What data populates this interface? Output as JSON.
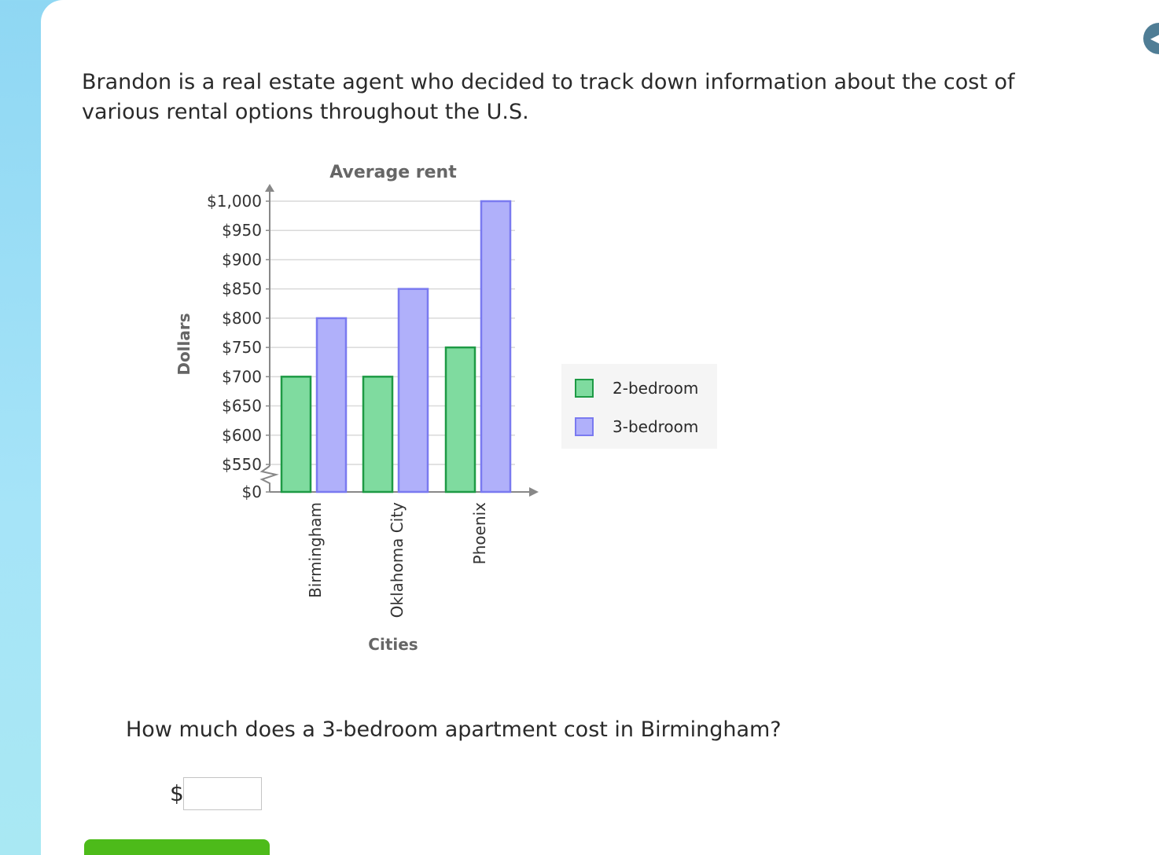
{
  "corner_button": {
    "icon": "chevron-icon"
  },
  "problem": {
    "intro": "Brandon is a real estate agent who decided to track down information about the cost of various rental options throughout the U.S.",
    "question": "How much does a 3-bedroom apartment cost in Birmingham?"
  },
  "answer": {
    "currency_symbol": "$",
    "value": ""
  },
  "submit": {
    "label": ""
  },
  "colors": {
    "two_bedroom_fill": "#7fdb9f",
    "two_bedroom_stroke": "#1e9a45",
    "three_bedroom_fill": "#b0b0fa",
    "three_bedroom_stroke": "#7a7af0",
    "submit_green": "#4dbb1a",
    "background_blue": "#8fd7f3"
  },
  "chart_data": {
    "type": "bar",
    "title": "Average rent",
    "xlabel": "Cities",
    "ylabel": "Dollars",
    "categories": [
      "Birmingham",
      "Oklahoma City",
      "Phoenix"
    ],
    "series": [
      {
        "name": "2-bedroom",
        "values": [
          700,
          700,
          750
        ]
      },
      {
        "name": "3-bedroom",
        "values": [
          800,
          850,
          1000
        ]
      }
    ],
    "ylim": [
      550,
      1000
    ],
    "axis_break": true,
    "y_ticks": [
      0,
      550,
      600,
      650,
      700,
      750,
      800,
      850,
      900,
      950,
      1000
    ],
    "y_tick_labels": [
      "$0",
      "$550",
      "$600",
      "$650",
      "$700",
      "$750",
      "$800",
      "$850",
      "$900",
      "$950",
      "$1,000"
    ],
    "grid": true,
    "legend": "right"
  }
}
